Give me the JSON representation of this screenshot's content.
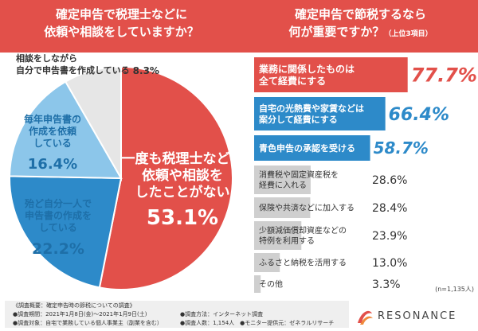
{
  "header": {
    "left_title": "確定申告で税理士などに\n依頼や相談をしていますか？",
    "right_title": "確定申告で節税するなら\n何が重要ですか？",
    "right_note": "（上位3項目）"
  },
  "colors": {
    "brand_red": "#e2504a",
    "blue_mid": "#2d8ac9",
    "blue_light": "#8cc6ea",
    "blue_dark": "#1e6fa8",
    "grey": "#e6e6e6"
  },
  "chart_data": [
    {
      "type": "pie",
      "slices": [
        {
          "label": "一度も税理士などに\n依頼や相談を\nしたことがない",
          "value": 53.1,
          "display": "53.1%",
          "color": "#e2504a"
        },
        {
          "label": "殆ど自分一人で\n申告書の作成を\nしている",
          "value": 22.2,
          "display": "22.2%",
          "color": "#2d8ac9"
        },
        {
          "label": "毎年申告書の\n作成を依頼\nしている",
          "value": 16.4,
          "display": "16.4%",
          "color": "#8cc6ea"
        },
        {
          "label": "相談をしながら\n自分で申告書を作成している",
          "value": 8.3,
          "display": "8.3%",
          "color": "#e6e6e6"
        }
      ]
    },
    {
      "type": "bar",
      "orientation": "horizontal",
      "note": "(n=1,135人)",
      "categories": [
        "業務に関係したものは\n全て経費にする",
        "自宅の光熱費や家賃などは\n案分して経費にする",
        "青色申告の承認を受ける",
        "消費税や固定資産税を\n経費に入れる",
        "保険や共済などに加入する",
        "少額減価償却資産などの\n特例を利用する",
        "ふるさと納税を活用する",
        "その他"
      ],
      "values": [
        77.7,
        66.4,
        58.7,
        28.6,
        28.4,
        23.9,
        13.0,
        3.3
      ],
      "value_labels": [
        "77.7%",
        "66.4%",
        "58.7%",
        "28.6%",
        "28.4%",
        "23.9%",
        "13.0%",
        "3.3%"
      ],
      "bar_colors": [
        "#e2504a",
        "#2d8ac9",
        "#2d8ac9",
        "#cfcfcf",
        "#cfcfcf",
        "#cfcfcf",
        "#cfcfcf",
        "#cfcfcf"
      ],
      "label_colors": [
        "#ffffff",
        "#ffffff",
        "#ffffff",
        "#333333",
        "#333333",
        "#333333",
        "#333333",
        "#333333"
      ],
      "value_colors": [
        "#e2504a",
        "#2d8ac9",
        "#2d8ac9",
        "#333333",
        "#333333",
        "#333333",
        "#333333",
        "#333333"
      ],
      "xlim": [
        0,
        100
      ]
    }
  ],
  "footer": {
    "title": "《調査概要：確定申告時の節税についての調査》",
    "period": "●調査期間：2021年1月8日(金)～2021年1月9日(土)",
    "target": "●調査対象：自宅で業務している個人事業主（副業を含む）",
    "method": "●調査方法：インターネット調査",
    "people": "●調査人数：1,154人　●モニター提供元：ゼネラルリサーチ"
  },
  "brand": {
    "name": "RESONANCE"
  }
}
